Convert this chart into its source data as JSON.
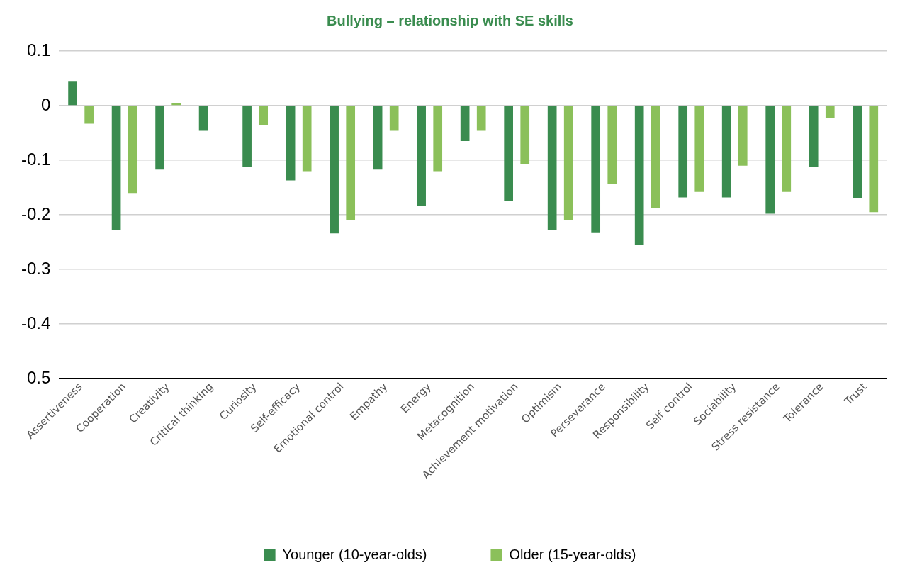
{
  "chart_data": {
    "type": "bar",
    "title": "Bullying – relationship with SE skills",
    "categories": [
      "Assertiveness",
      "Cooperation",
      "Creativity",
      "Critical thinking",
      "Curiosity",
      "Self-efficacy",
      "Emotional control",
      "Empathy",
      "Energy",
      "Metacognition",
      "Achievement motivation",
      "Optimism",
      "Perseverance",
      "Responsibility",
      "Self control",
      "Sociability",
      "Stress resistance",
      "Tolerance",
      "Trust"
    ],
    "series": [
      {
        "name": "Younger (10-year-olds)",
        "color": "#3a8c4f",
        "values": [
          0.045,
          -0.228,
          -0.117,
          -0.046,
          -0.113,
          -0.137,
          -0.234,
          -0.117,
          -0.184,
          -0.065,
          -0.174,
          -0.228,
          -0.232,
          -0.255,
          -0.168,
          -0.168,
          -0.198,
          -0.113,
          -0.17
        ]
      },
      {
        "name": "Older (15-year-olds)",
        "color": "#8bc05a",
        "values": [
          -0.033,
          -0.16,
          0.004,
          null,
          -0.035,
          -0.12,
          -0.21,
          -0.046,
          -0.12,
          -0.046,
          -0.107,
          -0.21,
          -0.144,
          -0.188,
          -0.158,
          -0.11,
          -0.158,
          -0.022,
          -0.195
        ]
      }
    ],
    "ylim": [
      -0.5,
      0.1
    ],
    "yticks": [
      0.1,
      0,
      -0.1,
      -0.2,
      -0.3,
      -0.4,
      {
        "value": -0.5,
        "label": "0.5"
      }
    ],
    "grid": "y",
    "legend": "bottom"
  }
}
